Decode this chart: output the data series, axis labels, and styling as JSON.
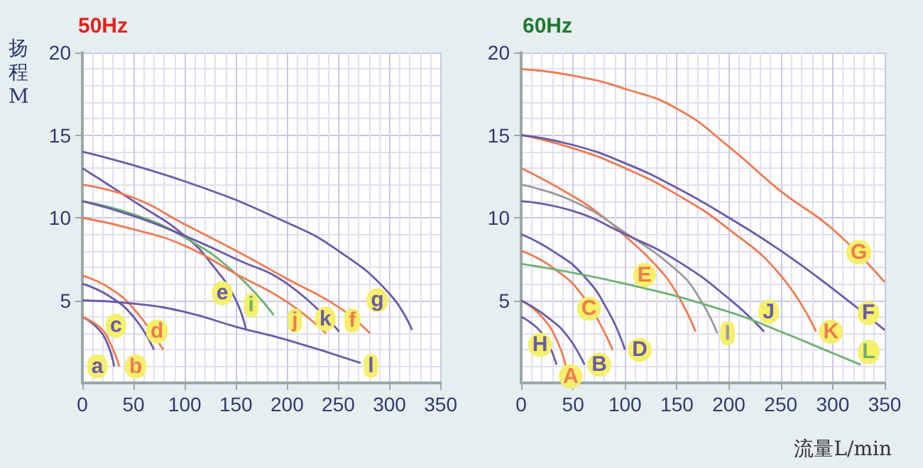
{
  "chart_data": [
    {
      "type": "line",
      "title": "50Hz",
      "ylabel": "扬程M",
      "xlim": [
        0,
        350
      ],
      "ylim": [
        0,
        20
      ],
      "xticks": [
        0,
        50,
        100,
        150,
        200,
        250,
        300,
        350
      ],
      "yticks": [
        5,
        10,
        15,
        20
      ],
      "grid": true,
      "legend": false,
      "marker": "none",
      "series": [
        {
          "name": "a",
          "color": "#6a5aa8",
          "x": [
            0,
            15,
            25,
            31
          ],
          "values": [
            4,
            3.3,
            2.3,
            1.0
          ]
        },
        {
          "name": "b",
          "color": "#f07a50",
          "x": [
            0,
            18,
            28,
            36
          ],
          "values": [
            4,
            3.3,
            2.3,
            1.0
          ]
        },
        {
          "name": "c",
          "color": "#6a5aa8",
          "x": [
            0,
            25,
            50,
            70
          ],
          "values": [
            6,
            5.3,
            4,
            2
          ]
        },
        {
          "name": "d",
          "color": "#f07a50",
          "x": [
            0,
            25,
            50,
            79
          ],
          "values": [
            6.5,
            5.8,
            4.5,
            2
          ]
        },
        {
          "name": "e",
          "color": "#6a5aa8",
          "x": [
            0,
            50,
            100,
            130,
            150,
            160
          ],
          "values": [
            13,
            11,
            8.9,
            6.9,
            5,
            3.2
          ]
        },
        {
          "name": "i",
          "color": "#6cb070",
          "x": [
            0,
            50,
            100,
            150,
            187
          ],
          "values": [
            11,
            10.2,
            8.8,
            6.6,
            4.1
          ]
        },
        {
          "name": "j",
          "color": "#f07a50",
          "x": [
            0,
            50,
            100,
            150,
            200,
            238
          ],
          "values": [
            10,
            9.3,
            8.3,
            6.6,
            4.9,
            3
          ]
        },
        {
          "name": "k",
          "color": "#6a5aa8",
          "x": [
            0,
            50,
            100,
            150,
            200,
            251
          ],
          "values": [
            11,
            10.1,
            8.9,
            7.5,
            6,
            3.1
          ]
        },
        {
          "name": "f",
          "color": "#f07a50",
          "x": [
            0,
            50,
            100,
            150,
            200,
            250,
            281
          ],
          "values": [
            12,
            11.2,
            9.6,
            8,
            6.3,
            4.6,
            3
          ]
        },
        {
          "name": "g",
          "color": "#6a5aa8",
          "x": [
            0,
            100,
            200,
            250,
            300,
            322
          ],
          "values": [
            14,
            12.2,
            9.7,
            8,
            5.4,
            3.2
          ]
        },
        {
          "name": "l",
          "color": "#6a5aa8",
          "x": [
            0,
            50,
            100,
            150,
            200,
            272
          ],
          "values": [
            5,
            4.8,
            4.3,
            3.4,
            2.6,
            1.2
          ]
        }
      ]
    },
    {
      "type": "line",
      "title": "60Hz",
      "xlabel": "流量L/min",
      "xlim": [
        0,
        350
      ],
      "ylim": [
        0,
        20
      ],
      "xticks": [
        0,
        50,
        100,
        150,
        200,
        250,
        300,
        350
      ],
      "yticks": [
        5,
        10,
        15,
        20
      ],
      "grid": true,
      "legend": false,
      "marker": "none",
      "series": [
        {
          "name": "H",
          "color": "#6a5aa8",
          "x": [
            0,
            20,
            34
          ],
          "values": [
            4,
            3,
            1.1
          ]
        },
        {
          "name": "A",
          "color": "#f07a50",
          "x": [
            0,
            20,
            35,
            43
          ],
          "values": [
            5,
            4,
            2.5,
            1
          ]
        },
        {
          "name": "B",
          "color": "#6a5aa8",
          "x": [
            0,
            25,
            45,
            61
          ],
          "values": [
            5,
            4,
            2.8,
            1.1
          ]
        },
        {
          "name": "C",
          "color": "#f07a50",
          "x": [
            0,
            30,
            60,
            88
          ],
          "values": [
            8,
            7,
            5.2,
            2
          ]
        },
        {
          "name": "D",
          "color": "#6a5aa8",
          "x": [
            0,
            30,
            60,
            85,
            100
          ],
          "values": [
            9,
            8,
            6.5,
            4.2,
            2
          ]
        },
        {
          "name": "E",
          "color": "#f07a50",
          "x": [
            0,
            50,
            80,
            100,
            130,
            150,
            168
          ],
          "values": [
            13,
            11.3,
            10,
            8.9,
            7.1,
            5.4,
            3.1
          ]
        },
        {
          "name": "I",
          "color": "#9a9a9a",
          "x": [
            0,
            50,
            100,
            150,
            170,
            189
          ],
          "values": [
            12,
            11,
            9.1,
            6.8,
            5.3,
            3
          ]
        },
        {
          "name": "J",
          "color": "#6a5aa8",
          "x": [
            0,
            50,
            100,
            150,
            200,
            234
          ],
          "values": [
            11,
            10.4,
            9,
            7.4,
            5.1,
            3.1
          ]
        },
        {
          "name": "K",
          "color": "#f07a50",
          "x": [
            0,
            50,
            100,
            150,
            200,
            250,
            284
          ],
          "values": [
            15,
            14.2,
            13,
            11.4,
            9.3,
            6.5,
            3.1
          ]
        },
        {
          "name": "F",
          "color": "#6a5aa8",
          "x": [
            0,
            50,
            100,
            150,
            200,
            250,
            300,
            350
          ],
          "values": [
            15,
            14.4,
            13.3,
            11.8,
            10,
            8,
            5.7,
            3.2
          ]
        },
        {
          "name": "G",
          "color": "#f07a50",
          "x": [
            0,
            50,
            100,
            150,
            200,
            250,
            300,
            350
          ],
          "values": [
            19,
            18.6,
            17.8,
            16.6,
            14.3,
            11.6,
            9.3,
            6.1
          ]
        },
        {
          "name": "L",
          "color": "#6cb070",
          "x": [
            0,
            100,
            200,
            250,
            300,
            327
          ],
          "values": [
            7.2,
            6,
            4.3,
            3.1,
            1.8,
            1.1
          ]
        }
      ]
    }
  ]
}
